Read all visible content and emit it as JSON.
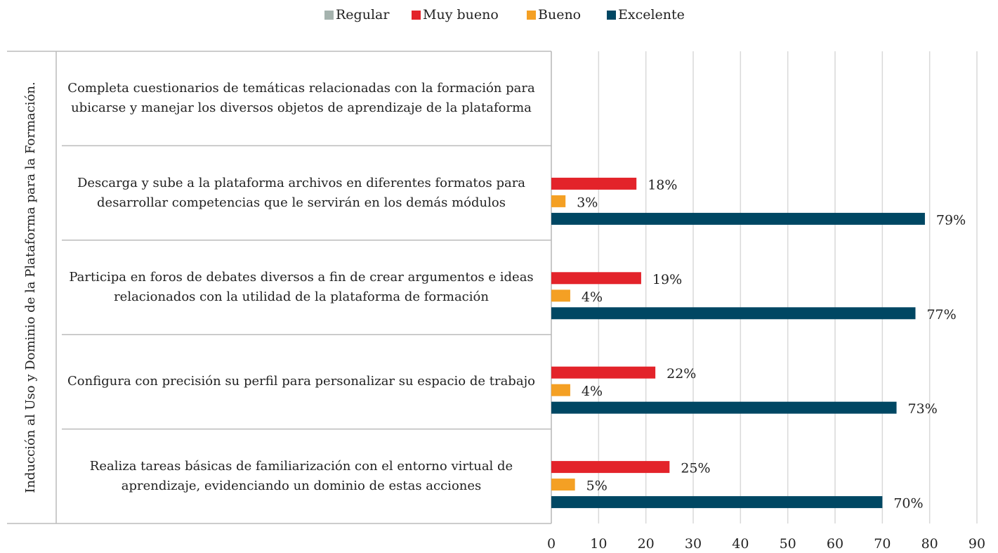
{
  "chart_data": {
    "type": "bar",
    "orientation": "horizontal",
    "y_label": "Inducción al Uso y Dominio de la Plataforma para la Formación.",
    "categories": [
      "Completa cuestionarios de temáticas relacionadas con la formación para ubicarse y manejar los diversos objetos de aprendizaje de la plataforma",
      "Descarga y sube a la plataforma archivos en diferentes formatos para desarrollar competencias que le servirán en los demás módulos",
      "Participa en foros de debates diversos a fin de crear argumentos e ideas relacionados con la utilidad de la plataforma de formación",
      "Configura con precisión su perfil para personalizar su espacio de trabajo",
      "Realiza tareas básicas de familiarización con el entorno virtual de aprendizaje, evidenciando un dominio de estas acciones"
    ],
    "series": [
      {
        "name": "Regular",
        "color": "#a5b3ae",
        "values": [
          null,
          null,
          null,
          null,
          null
        ],
        "value_labels": [
          null,
          null,
          null,
          null,
          null
        ]
      },
      {
        "name": "Muy bueno",
        "color": "#e3232a",
        "values": [
          null,
          18,
          19,
          22,
          25
        ],
        "value_labels": [
          null,
          "18%",
          "19%",
          "22%",
          "25%"
        ]
      },
      {
        "name": "Bueno",
        "color": "#f4a024",
        "values": [
          null,
          3,
          4,
          4,
          5
        ],
        "value_labels": [
          null,
          "3%",
          "4%",
          "4%",
          "5%"
        ]
      },
      {
        "name": "Excelente",
        "color": "#004763",
        "values": [
          null,
          79,
          77,
          73,
          70
        ],
        "value_labels": [
          null,
          "79%",
          "77%",
          "73%",
          "70%"
        ]
      }
    ],
    "xlim": [
      0,
      90
    ],
    "xticks": [
      0,
      10,
      20,
      30,
      40,
      50,
      60,
      70,
      80,
      90
    ],
    "grid": true,
    "legend": "top"
  }
}
